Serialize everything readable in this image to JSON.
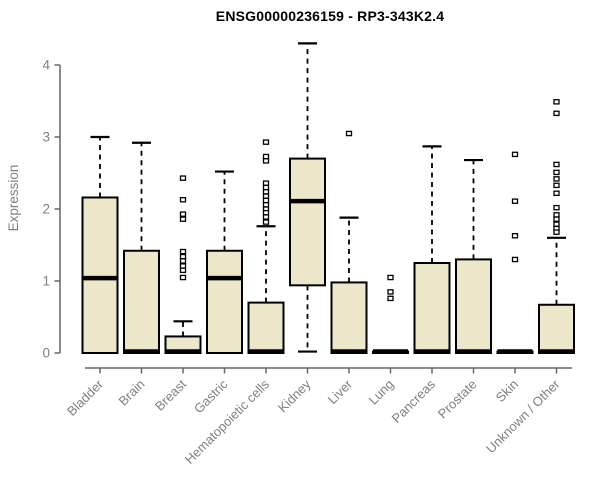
{
  "chart_data": {
    "type": "boxplot",
    "title": "ENSG00000236159 - RP3-343K2.4",
    "ylabel": "Expression",
    "ylim": [
      0,
      4
    ],
    "yticks": [
      0,
      1,
      2,
      3,
      4
    ],
    "grid": false,
    "categories": [
      "Bladder",
      "Brain",
      "Breast",
      "Gastric",
      "Hematopoietic cells",
      "Kidney",
      "Liver",
      "Lung",
      "Pancreas",
      "Prostate",
      "Skin",
      "Unknown / Other"
    ],
    "series": [
      {
        "name": "Bladder",
        "q1": 0,
        "median": 1.04,
        "q3": 2.16,
        "whisker_low": 0,
        "whisker_high": 3.0,
        "outliers": []
      },
      {
        "name": "Brain",
        "q1": 0,
        "median": 0.02,
        "q3": 1.42,
        "whisker_low": 0,
        "whisker_high": 2.92,
        "outliers": []
      },
      {
        "name": "Breast",
        "q1": 0,
        "median": 0.02,
        "q3": 0.23,
        "whisker_low": 0,
        "whisker_high": 0.44,
        "outliers": [
          2.43,
          2.13,
          1.93,
          1.86,
          1.41,
          1.34,
          1.28,
          1.21,
          1.15,
          1.05
        ]
      },
      {
        "name": "Gastric",
        "q1": 0,
        "median": 1.04,
        "q3": 1.42,
        "whisker_low": 0,
        "whisker_high": 2.52,
        "outliers": []
      },
      {
        "name": "Hematopoietic cells",
        "q1": 0,
        "median": 0.02,
        "q3": 0.7,
        "whisker_low": 0,
        "whisker_high": 1.76,
        "outliers": [
          2.93,
          2.73,
          2.67,
          2.36,
          2.3,
          2.24,
          2.18,
          2.12,
          2.06,
          2.0,
          1.95,
          1.89,
          1.82
        ]
      },
      {
        "name": "Kidney",
        "q1": 0.94,
        "median": 2.11,
        "q3": 2.7,
        "whisker_low": 0.02,
        "whisker_high": 4.3,
        "outliers": []
      },
      {
        "name": "Liver",
        "q1": 0,
        "median": 0.02,
        "q3": 0.98,
        "whisker_low": 0,
        "whisker_high": 1.88,
        "outliers": [
          3.05
        ]
      },
      {
        "name": "Lung",
        "q1": 0,
        "median": 0.02,
        "q3": 0.02,
        "whisker_low": 0,
        "whisker_high": 0.02,
        "outliers": [
          1.05,
          0.85,
          0.76
        ]
      },
      {
        "name": "Pancreas",
        "q1": 0,
        "median": 0.02,
        "q3": 1.25,
        "whisker_low": 0,
        "whisker_high": 2.87,
        "outliers": []
      },
      {
        "name": "Prostate",
        "q1": 0,
        "median": 0.02,
        "q3": 1.3,
        "whisker_low": 0,
        "whisker_high": 2.68,
        "outliers": []
      },
      {
        "name": "Skin",
        "q1": 0,
        "median": 0.02,
        "q3": 0.02,
        "whisker_low": 0,
        "whisker_high": 0.02,
        "outliers": [
          2.76,
          2.11,
          1.63,
          1.3
        ]
      },
      {
        "name": "Unknown / Other",
        "q1": 0,
        "median": 0.02,
        "q3": 0.67,
        "whisker_low": 0,
        "whisker_high": 1.6,
        "outliers": [
          3.49,
          3.33,
          2.62,
          2.51,
          2.42,
          2.33,
          2.22,
          2.02,
          1.92,
          1.86,
          1.79,
          1.73,
          1.68
        ]
      }
    ],
    "colors": {
      "box_fill": "#ece7ca",
      "box_border": "#000000",
      "median": "#000000",
      "whisker": "#000000",
      "axis": "#666666",
      "text": "#7f7f7f",
      "title": "#000000",
      "background": "#ffffff"
    }
  }
}
